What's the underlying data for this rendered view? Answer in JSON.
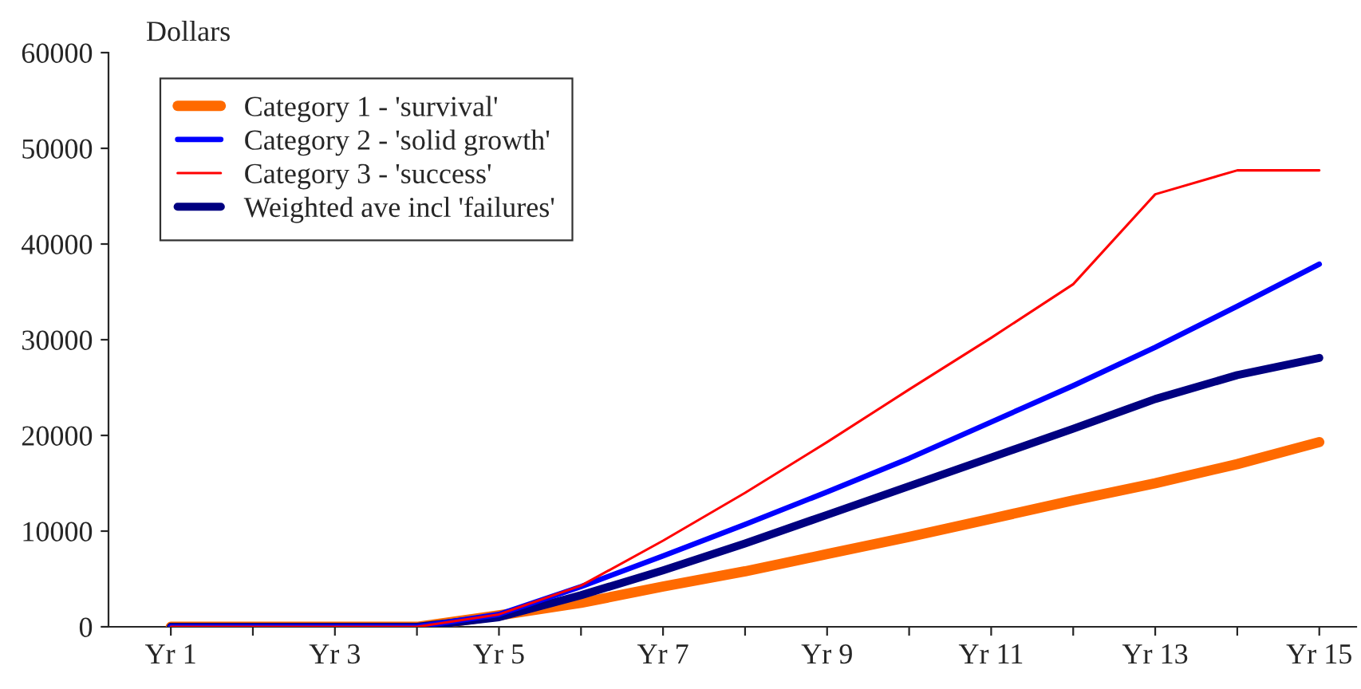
{
  "chart_data": {
    "type": "line",
    "ylabel": "Dollars",
    "categories": [
      "Yr 1",
      null,
      "Yr 3",
      null,
      "Yr 5",
      null,
      "Yr 7",
      null,
      "Yr 9",
      null,
      "Yr 11",
      null,
      "Yr 13",
      null,
      "Yr 15"
    ],
    "series": [
      {
        "name": "Category 1 - 'survival'",
        "color": "#ff6a00",
        "values": [
          0,
          0,
          0,
          0,
          1200,
          2500,
          4200,
          5800,
          7600,
          9400,
          11300,
          13200,
          15000,
          17000,
          19300
        ]
      },
      {
        "name": "Category 2 - 'solid growth'",
        "color": "#0000ff",
        "values": [
          0,
          0,
          0,
          0,
          1300,
          4200,
          7400,
          10700,
          14100,
          17600,
          21400,
          25200,
          29200,
          33500,
          37900
        ]
      },
      {
        "name": "Category 3 - 'success'",
        "color": "#ff0000",
        "values": [
          0,
          0,
          0,
          0,
          1300,
          4300,
          9000,
          14000,
          19300,
          24800,
          30200,
          35800,
          45200,
          47700,
          47700
        ]
      },
      {
        "name": "Weighted ave incl 'failures'",
        "color": "#000080",
        "values": [
          0,
          0,
          0,
          0,
          1000,
          3300,
          5900,
          8700,
          11700,
          14700,
          17700,
          20700,
          23800,
          26300,
          28100
        ]
      }
    ],
    "ylim": [
      0,
      60000
    ],
    "yticks": [
      0,
      10000,
      20000,
      30000,
      40000,
      50000,
      60000
    ],
    "grid": false,
    "legend": "top left",
    "marker": "none",
    "line_style": "solid"
  }
}
